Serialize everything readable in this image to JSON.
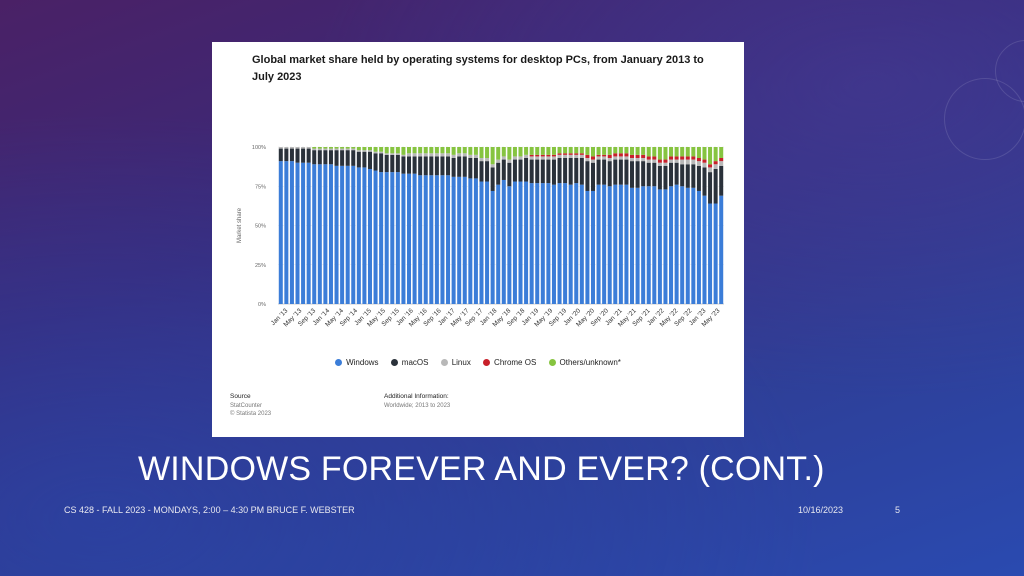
{
  "slide": {
    "title": "WINDOWS FOREVER AND EVER? (CONT.)",
    "footer_left": "CS 428 - FALL 2023 - MONDAYS, 2:00 – 4:30 PM BRUCE F. WEBSTER",
    "date": "10/16/2023",
    "page_number": "5"
  },
  "figure": {
    "source_title": "Source",
    "source_lines": [
      "StatCounter",
      "© Statista 2023"
    ],
    "info_title": "Additional Information:",
    "info_text": "Worldwide; 2013 to 2023"
  },
  "chart_data": {
    "type": "bar",
    "stacked": true,
    "title": "Global market share held by operating systems for desktop PCs, from January 2013 to July 2023",
    "ylabel": "Market share",
    "ylim": [
      0,
      100
    ],
    "yticks": [
      "0%",
      "25%",
      "50%",
      "75%",
      "100%"
    ],
    "grid": true,
    "legend": "bottom",
    "xtick_labels": [
      "Jan '13",
      "May '13",
      "Sep '13",
      "Jan '14",
      "May '14",
      "Sep '14",
      "Jan '15",
      "May '15",
      "Sep '15",
      "Jan '16",
      "May '16",
      "Sep '16",
      "Jan '17",
      "May '17",
      "Sep '17",
      "Jan '18",
      "May '18",
      "Sep '18",
      "Jan '19",
      "May '19",
      "Sep '19",
      "Jan '20",
      "May '20",
      "Sep '20",
      "Jan '21",
      "May '21",
      "Sep '21",
      "Jan '22",
      "May '22",
      "Sep '22",
      "Jan '23",
      "May '23"
    ],
    "series": [
      {
        "name": "Windows",
        "color": "#3b7dd8",
        "values": [
          91,
          91,
          91,
          90,
          90,
          90,
          89,
          89,
          89,
          89,
          88,
          88,
          88,
          88,
          87,
          87,
          86,
          85,
          84,
          84,
          84,
          84,
          83,
          83,
          83,
          82,
          82,
          82,
          82,
          82,
          82,
          81,
          81,
          81,
          80,
          80,
          78,
          78,
          72,
          76,
          79,
          75,
          78,
          78,
          78,
          77,
          77,
          77,
          77,
          76,
          77,
          77,
          76,
          77,
          76,
          72,
          72,
          76,
          76,
          75,
          76,
          76,
          76,
          74,
          74,
          75,
          75,
          75,
          73,
          73,
          75,
          76,
          75,
          74,
          74,
          72,
          69,
          64,
          64,
          69
        ]
      },
      {
        "name": "macOS",
        "color": "#2a313a",
        "values": [
          8,
          8,
          8,
          9,
          9,
          9,
          9,
          9,
          9,
          9,
          10,
          10,
          10,
          10,
          10,
          10,
          11,
          11,
          12,
          11,
          11,
          11,
          11,
          11,
          11,
          12,
          12,
          12,
          12,
          12,
          12,
          12,
          13,
          13,
          13,
          13,
          13,
          13,
          15,
          14,
          13,
          15,
          14,
          14,
          15,
          15,
          15,
          15,
          15,
          16,
          16,
          16,
          17,
          16,
          17,
          19,
          18,
          16,
          16,
          16,
          16,
          16,
          16,
          17,
          17,
          16,
          15,
          15,
          15,
          15,
          15,
          14,
          14,
          15,
          15,
          16,
          18,
          20,
          22,
          19
        ]
      },
      {
        "name": "Linux",
        "color": "#b8b8b8",
        "values": [
          1,
          1,
          1,
          1,
          1,
          1,
          1,
          1,
          1,
          1,
          1,
          1,
          1,
          1,
          1,
          1,
          1,
          1,
          1,
          1,
          1,
          1,
          1,
          2,
          2,
          2,
          2,
          2,
          2,
          2,
          2,
          2,
          2,
          2,
          2,
          2,
          2,
          2,
          2,
          2,
          2,
          2,
          2,
          2,
          2,
          2,
          2,
          2,
          2,
          2,
          2,
          2,
          2,
          2,
          2,
          2,
          2,
          2,
          2,
          2,
          2,
          2,
          2,
          2,
          2,
          2,
          2,
          2,
          2,
          2,
          2,
          2,
          3,
          3,
          3,
          3,
          3,
          3,
          3,
          3
        ]
      },
      {
        "name": "Chrome OS",
        "color": "#c8202a",
        "values": [
          0,
          0,
          0,
          0,
          0,
          0,
          0,
          0,
          0,
          0,
          0,
          0,
          0,
          0,
          0,
          0,
          0,
          0,
          0,
          0,
          0,
          0,
          0,
          0,
          0,
          0,
          0,
          0,
          0,
          0,
          0,
          0,
          0,
          0,
          0,
          0,
          0,
          0,
          0,
          0,
          0,
          0,
          0,
          0,
          0,
          1,
          1,
          1,
          1,
          1,
          1,
          1,
          1,
          1,
          1,
          2,
          2,
          1,
          1,
          2,
          2,
          2,
          2,
          2,
          2,
          2,
          2,
          2,
          2,
          2,
          2,
          2,
          2,
          2,
          2,
          2,
          2,
          2,
          2,
          2
        ]
      },
      {
        "name": "Others/unknown*",
        "color": "#86c440",
        "values": [
          0,
          0,
          0,
          0,
          0,
          0,
          1,
          1,
          1,
          1,
          1,
          1,
          1,
          1,
          2,
          2,
          2,
          3,
          3,
          4,
          4,
          4,
          5,
          4,
          4,
          4,
          4,
          4,
          4,
          4,
          4,
          5,
          4,
          4,
          5,
          5,
          7,
          7,
          11,
          8,
          6,
          8,
          6,
          6,
          5,
          5,
          5,
          5,
          5,
          5,
          4,
          4,
          4,
          4,
          4,
          5,
          6,
          5,
          5,
          5,
          4,
          4,
          4,
          5,
          5,
          5,
          6,
          6,
          8,
          8,
          6,
          6,
          6,
          6,
          6,
          7,
          8,
          11,
          9,
          7
        ]
      }
    ]
  }
}
